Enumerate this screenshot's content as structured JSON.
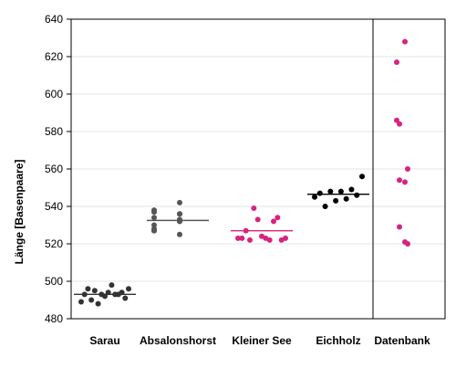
{
  "chart_data": {
    "type": "scatter",
    "title": "",
    "xlabel": "",
    "ylabel": "Länge [Basenpaare]",
    "ylim": [
      480,
      640
    ],
    "yticks": [
      480,
      500,
      520,
      540,
      560,
      580,
      600,
      620,
      640
    ],
    "grid": true,
    "categories": [
      "Sarau",
      "Absalonshorst",
      "Kleiner See",
      "Eichholz",
      "Datenbank"
    ],
    "separator_before_category": "Datenbank",
    "series": [
      {
        "category": "Sarau",
        "color": "#333333",
        "mean": 493,
        "values": [
          489,
          492,
          496,
          493,
          491,
          488,
          494,
          495,
          493,
          490,
          493,
          496,
          498,
          493,
          494
        ]
      },
      {
        "category": "Absalonshorst",
        "color": "#555555",
        "mean": 532.5,
        "values": [
          537,
          532,
          528,
          536,
          530,
          533,
          527,
          542,
          534,
          525,
          538,
          532,
          527,
          536
        ]
      },
      {
        "category": "Kleiner See",
        "color": "#d6247f",
        "mean": 527,
        "values": [
          523,
          523,
          523,
          522,
          527,
          532,
          522,
          534,
          539,
          522,
          533,
          523,
          524
        ]
      },
      {
        "category": "Eichholz",
        "color": "#000000",
        "mean": 546.5,
        "values": [
          545,
          549,
          543,
          547,
          546,
          548,
          540,
          556,
          544,
          548
        ]
      },
      {
        "category": "Datenbank",
        "color": "#d6247f",
        "mean": null,
        "values": [
          586,
          521,
          584,
          560,
          529,
          628,
          617,
          553,
          554,
          520
        ]
      }
    ]
  }
}
